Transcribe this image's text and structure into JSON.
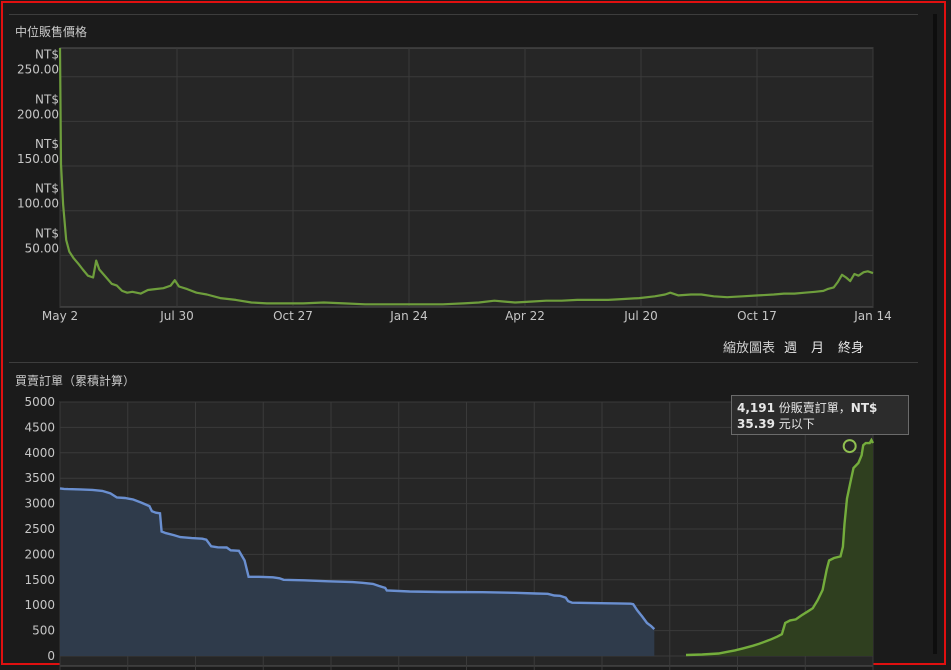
{
  "price_panel": {
    "title": "中位販售價格",
    "zoom_label": "縮放圖表",
    "zoom_options": [
      "週",
      "月",
      "終身"
    ]
  },
  "orders_panel": {
    "title": "買賣訂單（累積計算）",
    "tooltip": {
      "count": "4,191",
      "text1": " 份販賣訂單，",
      "currency": "NT$",
      "price": "35.39",
      "text2": " 元以下"
    }
  },
  "colors": {
    "price_line": "#6e9e3c",
    "buy_line": "#6a8fd0",
    "buy_fill": "#2f3b4b",
    "sell_line": "#74ad3c",
    "sell_fill": "#2f3f1f",
    "frame": "#e01010"
  },
  "chart_data": [
    {
      "type": "line",
      "title": "中位販售價格",
      "x_ticks": [
        "May 2",
        "Jul 30",
        "Oct 27",
        "Jan 24",
        "Apr 22",
        "Jul 20",
        "Oct 17",
        "Jan 14"
      ],
      "y_ticks": [
        "NT$\n50.00",
        "NT$\n100.00",
        "NT$\n150.00",
        "NT$\n200.00",
        "NT$\n250.00"
      ],
      "ylim": [
        0,
        290
      ],
      "grid": true,
      "series": [
        {
          "points": [
            [
              0,
              290
            ],
            [
              1,
              160
            ],
            [
              3,
              115
            ],
            [
              6,
              75
            ],
            [
              9,
              62
            ],
            [
              13,
              55
            ],
            [
              18,
              48
            ],
            [
              22,
              42
            ],
            [
              27,
              35
            ],
            [
              32,
              33
            ],
            [
              35,
              52
            ],
            [
              38,
              42
            ],
            [
              44,
              34
            ],
            [
              50,
              26
            ],
            [
              55,
              24
            ],
            [
              60,
              18
            ],
            [
              65,
              16
            ],
            [
              70,
              17
            ],
            [
              78,
              15
            ],
            [
              85,
              19
            ],
            [
              92,
              20
            ],
            [
              100,
              21
            ],
            [
              107,
              24
            ],
            [
              111,
              30
            ],
            [
              115,
              23
            ],
            [
              123,
              20
            ],
            [
              132,
              16
            ],
            [
              142,
              14
            ],
            [
              155,
              10
            ],
            [
              170,
              8
            ],
            [
              185,
              5
            ],
            [
              200,
              4
            ],
            [
              215,
              4
            ],
            [
              235,
              4
            ],
            [
              255,
              5
            ],
            [
              275,
              4
            ],
            [
              295,
              3
            ],
            [
              315,
              3
            ],
            [
              335,
              3
            ],
            [
              352,
              3
            ],
            [
              370,
              3
            ],
            [
              390,
              4
            ],
            [
              405,
              5
            ],
            [
              420,
              7
            ],
            [
              430,
              6
            ],
            [
              440,
              5
            ],
            [
              455,
              6
            ],
            [
              470,
              7
            ],
            [
              485,
              7
            ],
            [
              500,
              8
            ],
            [
              515,
              8
            ],
            [
              530,
              8
            ],
            [
              545,
              9
            ],
            [
              560,
              10
            ],
            [
              575,
              12
            ],
            [
              585,
              14
            ],
            [
              590,
              16
            ],
            [
              598,
              13
            ],
            [
              610,
              14
            ],
            [
              620,
              14
            ],
            [
              632,
              12
            ],
            [
              645,
              11
            ],
            [
              660,
              12
            ],
            [
              675,
              13
            ],
            [
              690,
              14
            ],
            [
              700,
              15
            ],
            [
              710,
              15
            ],
            [
              720,
              16
            ],
            [
              730,
              17
            ],
            [
              738,
              18
            ],
            [
              742,
              20
            ],
            [
              748,
              22
            ],
            [
              752,
              28
            ],
            [
              756,
              36
            ],
            [
              760,
              33
            ],
            [
              764,
              29
            ],
            [
              768,
              37
            ],
            [
              772,
              35
            ],
            [
              777,
              39
            ],
            [
              781,
              40
            ],
            [
              786,
              38
            ]
          ],
          "x_range": [
            0,
            786
          ]
        }
      ]
    },
    {
      "type": "area",
      "title": "買賣訂單（累積計算）",
      "y_ticks": [
        "0",
        "500",
        "1000",
        "1500",
        "2000",
        "2500",
        "3000",
        "3500",
        "4000",
        "4500",
        "5000"
      ],
      "ylim": [
        0,
        5000
      ],
      "grid": true,
      "series": [
        {
          "values": [
            [
              0,
              3300
            ],
            [
              5,
              3290
            ],
            [
              10,
              3285
            ],
            [
              25,
              3280
            ],
            [
              40,
              3270
            ],
            [
              52,
              3250
            ],
            [
              62,
              3200
            ],
            [
              70,
              3120
            ],
            [
              80,
              3110
            ],
            [
              90,
              3080
            ],
            [
              100,
              3020
            ],
            [
              110,
              2950
            ],
            [
              113,
              2850
            ],
            [
              118,
              2820
            ],
            [
              123,
              2810
            ],
            [
              125,
              2450
            ],
            [
              130,
              2420
            ],
            [
              140,
              2380
            ],
            [
              148,
              2340
            ],
            [
              162,
              2320
            ],
            [
              175,
              2310
            ],
            [
              180,
              2290
            ],
            [
              186,
              2160
            ],
            [
              194,
              2140
            ],
            [
              205,
              2135
            ],
            [
              210,
              2080
            ],
            [
              220,
              2070
            ],
            [
              227,
              1880
            ],
            [
              232,
              1560
            ],
            [
              245,
              1560
            ],
            [
              262,
              1550
            ],
            [
              270,
              1530
            ],
            [
              275,
              1500
            ],
            [
              300,
              1490
            ],
            [
              330,
              1470
            ],
            [
              360,
              1455
            ],
            [
              372,
              1440
            ],
            [
              385,
              1420
            ],
            [
              392,
              1380
            ],
            [
              400,
              1340
            ],
            [
              402,
              1290
            ],
            [
              430,
              1270
            ],
            [
              470,
              1260
            ],
            [
              520,
              1255
            ],
            [
              560,
              1245
            ],
            [
              585,
              1230
            ],
            [
              600,
              1225
            ],
            [
              608,
              1190
            ],
            [
              615,
              1185
            ],
            [
              622,
              1150
            ],
            [
              625,
              1080
            ],
            [
              630,
              1050
            ],
            [
              665,
              1040
            ],
            [
              685,
              1035
            ],
            [
              702,
              1030
            ],
            [
              705,
              1020
            ],
            [
              710,
              900
            ],
            [
              716,
              780
            ],
            [
              722,
              650
            ],
            [
              727,
              590
            ],
            [
              731,
              530
            ]
          ],
          "range": [
            0,
            731
          ]
        },
        {
          "values": [
            [
              770,
              20
            ],
            [
              790,
              30
            ],
            [
              810,
              50
            ],
            [
              820,
              80
            ],
            [
              830,
              110
            ],
            [
              840,
              150
            ],
            [
              852,
              200
            ],
            [
              860,
              240
            ],
            [
              870,
              300
            ],
            [
              875,
              330
            ],
            [
              882,
              380
            ],
            [
              888,
              430
            ],
            [
              892,
              650
            ],
            [
              898,
              700
            ],
            [
              905,
              720
            ],
            [
              912,
              800
            ],
            [
              920,
              880
            ],
            [
              926,
              940
            ],
            [
              932,
              1100
            ],
            [
              938,
              1300
            ],
            [
              943,
              1700
            ],
            [
              946,
              1880
            ],
            [
              952,
              1930
            ],
            [
              960,
              1960
            ],
            [
              963,
              2150
            ],
            [
              965,
              2600
            ],
            [
              968,
              3100
            ],
            [
              972,
              3400
            ],
            [
              976,
              3700
            ],
            [
              982,
              3800
            ],
            [
              986,
              3950
            ],
            [
              988,
              4150
            ],
            [
              991,
              4190
            ],
            [
              996,
              4191
            ],
            [
              998,
              4250
            ],
            [
              1000,
              4191
            ]
          ],
          "range": [
            731,
            1000
          ]
        }
      ]
    }
  ]
}
